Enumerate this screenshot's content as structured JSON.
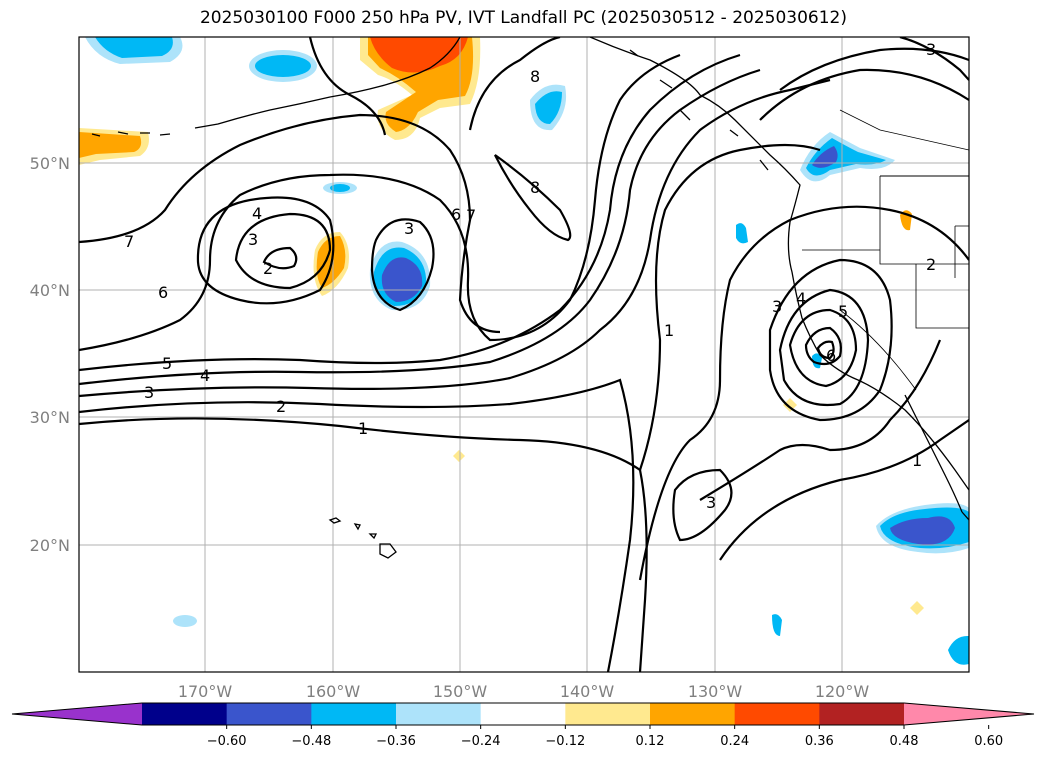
{
  "title": "2025030100 F000 250 hPa PV, IVT Landfall PC (2025030512 - 2025030612)",
  "map": {
    "lon_ticks": [
      "170°W",
      "160°W",
      "150°W",
      "140°W",
      "130°W",
      "120°W"
    ],
    "lat_ticks": [
      "50°N",
      "40°N",
      "30°N",
      "20°N"
    ],
    "contour_labels": [
      "1",
      "2",
      "3",
      "4",
      "5",
      "6",
      "7",
      "8",
      "3",
      "4",
      "3",
      "2",
      "6",
      "7",
      "8",
      "1",
      "3",
      "4",
      "5",
      "6",
      "3",
      "2",
      "3",
      "1"
    ],
    "colors": {
      "neg_strong": "#3a55cc",
      "neg_mid": "#00b8f5",
      "neg_weak": "#ade3fa",
      "pos_weak": "#ffe98f",
      "pos_mid": "#ffa500",
      "pos_strong": "#ff4a00",
      "contour": "#000000",
      "grid": "#b0b0b0"
    }
  },
  "colorbar": {
    "labels": [
      "−0.60",
      "−0.48",
      "−0.36",
      "−0.24",
      "−0.12",
      "0.12",
      "0.24",
      "0.36",
      "0.48",
      "0.60"
    ],
    "colors": [
      "#9932cc",
      "#8a2be2",
      "#00008b",
      "#3a55cc",
      "#00b8f5",
      "#ade3fa",
      "#ffffff",
      "#ffe98f",
      "#ffa500",
      "#ff4a00",
      "#b22222",
      "#ff88aa"
    ]
  }
}
